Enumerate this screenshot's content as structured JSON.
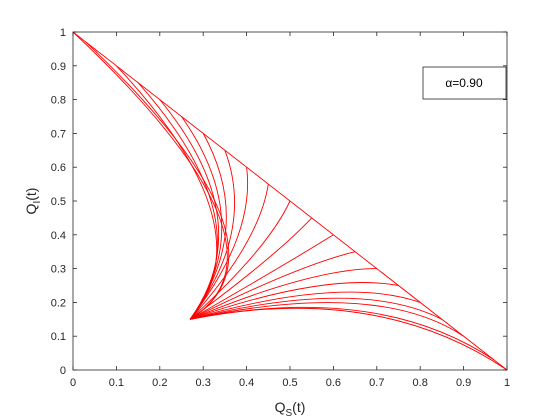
{
  "chart_data": {
    "type": "line",
    "xlabel": {
      "main": "Q",
      "sub": "S",
      "suffix": "(t)"
    },
    "ylabel": {
      "main": "Q",
      "sub": "I",
      "suffix": "(t)"
    },
    "xlim": [
      0,
      1
    ],
    "ylim": [
      0,
      1
    ],
    "xticks": [
      0,
      0.1,
      0.2,
      0.3,
      0.4,
      0.5,
      0.6,
      0.7,
      0.8,
      0.9,
      1
    ],
    "yticks": [
      0,
      0.1,
      0.2,
      0.3,
      0.4,
      0.5,
      0.6,
      0.7,
      0.8,
      0.9,
      1
    ],
    "xtick_labels": [
      "0",
      "0.1",
      "0.2",
      "0.3",
      "0.4",
      "0.5",
      "0.6",
      "0.7",
      "0.8",
      "0.9",
      "1"
    ],
    "ytick_labels": [
      "0",
      "0.1",
      "0.2",
      "0.3",
      "0.4",
      "0.5",
      "0.6",
      "0.7",
      "0.8",
      "0.9",
      "1"
    ],
    "grid": false,
    "legend": {
      "text": "α=0.90",
      "placement": "top-right"
    },
    "line_color": "#ff0000",
    "boundary": [
      [
        0,
        1
      ],
      [
        1,
        0
      ]
    ],
    "sink": [
      0.27,
      0.15
    ],
    "series": [
      {
        "start": [
          0.0,
          1.0
        ],
        "control": [
          0.53,
          0.36
        ]
      },
      {
        "start": [
          0.03,
          0.97
        ],
        "control": [
          0.53,
          0.36
        ]
      },
      {
        "start": [
          0.1,
          0.9
        ],
        "control": [
          0.45,
          0.42
        ]
      },
      {
        "start": [
          0.15,
          0.85
        ],
        "control": [
          0.44,
          0.43
        ]
      },
      {
        "start": [
          0.2,
          0.8
        ],
        "control": [
          0.43,
          0.44
        ]
      },
      {
        "start": [
          0.25,
          0.75
        ],
        "control": [
          0.425,
          0.43
        ]
      },
      {
        "start": [
          0.3,
          0.7
        ],
        "control": [
          0.42,
          0.42
        ]
      },
      {
        "start": [
          0.35,
          0.65
        ],
        "control": [
          0.42,
          0.41
        ]
      },
      {
        "start": [
          0.4,
          0.6
        ],
        "control": [
          0.42,
          0.4
        ]
      },
      {
        "start": [
          0.45,
          0.55
        ],
        "control": [
          0.43,
          0.38
        ]
      },
      {
        "start": [
          0.5,
          0.5
        ],
        "control": [
          0.45,
          0.36
        ]
      },
      {
        "start": [
          0.55,
          0.45
        ],
        "control": [
          0.47,
          0.34
        ]
      },
      {
        "start": [
          0.6,
          0.4
        ],
        "control": [
          0.5,
          0.32
        ]
      },
      {
        "start": [
          0.65,
          0.35
        ],
        "control": [
          0.52,
          0.31
        ]
      },
      {
        "start": [
          0.7,
          0.3
        ],
        "control": [
          0.55,
          0.3
        ]
      },
      {
        "start": [
          0.75,
          0.25
        ],
        "control": [
          0.58,
          0.29
        ]
      },
      {
        "start": [
          0.8,
          0.2
        ],
        "control": [
          0.62,
          0.28
        ]
      },
      {
        "start": [
          0.85,
          0.15
        ],
        "control": [
          0.66,
          0.275
        ]
      },
      {
        "start": [
          0.9,
          0.1
        ],
        "control": [
          0.7,
          0.27
        ]
      },
      {
        "start": [
          0.97,
          0.03
        ],
        "control": [
          0.7,
          0.26
        ]
      },
      {
        "start": [
          1.0,
          0.0
        ],
        "control": [
          0.7,
          0.26
        ]
      }
    ]
  }
}
